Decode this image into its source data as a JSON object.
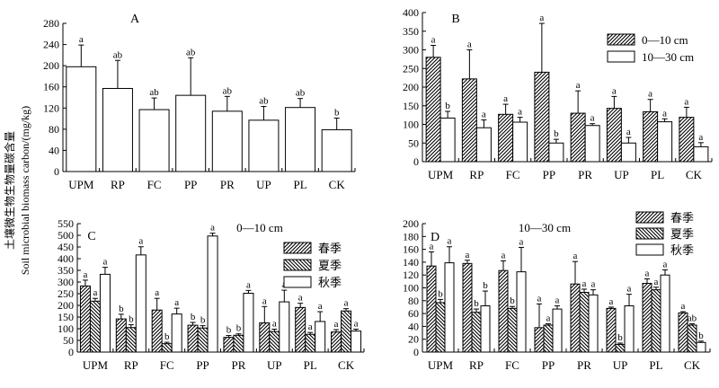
{
  "figure": {
    "ylabel_cn": "土壤微生物生物量碳含量",
    "ylabel_en": "Soil microbial biomass carbon/(mg/kg)"
  },
  "colors": {
    "bar_outline": "#000000",
    "bar_fill": "#ffffff",
    "hatch": "#000000"
  },
  "chart_data": [
    {
      "id": "A",
      "type": "bar",
      "title": "A",
      "subtitle": "",
      "categories": [
        "UPM",
        "RP",
        "FC",
        "PP",
        "PR",
        "UP",
        "PL",
        "CK"
      ],
      "ylim": [
        0,
        280
      ],
      "yticks": [
        0,
        40,
        80,
        120,
        160,
        200,
        240,
        280
      ],
      "grid": false,
      "legend": null,
      "series": [
        {
          "name": "",
          "pattern": "open",
          "values": [
            198,
            157,
            117,
            144,
            114,
            97,
            121,
            79
          ],
          "errors": [
            41,
            53,
            22,
            71,
            28,
            26,
            17,
            22
          ],
          "letters": [
            "a",
            "ab",
            "ab",
            "ab",
            "ab",
            "ab",
            "ab",
            "b"
          ]
        }
      ]
    },
    {
      "id": "B",
      "type": "bar",
      "title": "B",
      "subtitle": "",
      "categories": [
        "UPM",
        "RP",
        "FC",
        "PP",
        "PR",
        "UP",
        "PL",
        "CK"
      ],
      "ylim": [
        0,
        400
      ],
      "yticks": [
        0,
        50,
        100,
        150,
        200,
        250,
        300,
        350,
        400
      ],
      "grid": false,
      "legend": "top-right",
      "series": [
        {
          "name": "0—10 cm",
          "pattern": "hatch-right",
          "values": [
            280,
            222,
            127,
            240,
            130,
            143,
            134,
            119
          ],
          "errors": [
            32,
            78,
            27,
            131,
            60,
            32,
            33,
            27
          ],
          "letters": [
            "a",
            "a",
            "a",
            "a",
            "a",
            "a",
            "a",
            "a"
          ]
        },
        {
          "name": "10—30 cm",
          "pattern": "open",
          "values": [
            117,
            91,
            106,
            50,
            97,
            50,
            107,
            40
          ],
          "errors": [
            18,
            21,
            13,
            10,
            5,
            15,
            8,
            11
          ],
          "letters": [
            "b",
            "a",
            "a",
            "b",
            "a",
            "a",
            "a",
            "a"
          ]
        }
      ]
    },
    {
      "id": "C",
      "type": "bar",
      "title": "C",
      "subtitle": "0—10 cm",
      "categories": [
        "UPM",
        "RP",
        "FC",
        "PP",
        "PR",
        "UP",
        "PL",
        "CK"
      ],
      "ylim": [
        0,
        550
      ],
      "yticks": [
        0,
        50,
        100,
        150,
        200,
        250,
        300,
        350,
        400,
        450,
        500,
        550
      ],
      "grid": false,
      "legend": "right",
      "series": [
        {
          "name": "春季",
          "pattern": "hatch-right",
          "values": [
            283,
            142,
            180,
            115,
            63,
            125,
            191,
            86
          ],
          "errors": [
            25,
            20,
            50,
            12,
            8,
            70,
            18,
            10
          ],
          "letters": [
            "a",
            "b",
            "a",
            "b",
            "b",
            "a",
            "a",
            "a"
          ]
        },
        {
          "name": "夏季",
          "pattern": "hatch-left",
          "values": [
            218,
            105,
            36,
            103,
            72,
            88,
            76,
            176
          ],
          "errors": [
            12,
            12,
            6,
            10,
            6,
            10,
            8,
            10
          ],
          "letters": [
            "a",
            "b",
            "b",
            "b",
            "b",
            "a",
            "a",
            "a"
          ]
        },
        {
          "name": "秋季",
          "pattern": "open",
          "values": [
            333,
            416,
            163,
            497,
            252,
            215,
            131,
            90
          ],
          "errors": [
            30,
            35,
            25,
            12,
            12,
            50,
            42,
            8
          ],
          "letters": [
            "a",
            "a",
            "a",
            "a",
            "a",
            "a",
            "a",
            "a"
          ]
        }
      ]
    },
    {
      "id": "D",
      "type": "bar",
      "title": "D",
      "subtitle": "10—30 cm",
      "categories": [
        "UPM",
        "RP",
        "FC",
        "PP",
        "PR",
        "UP",
        "PL",
        "CK"
      ],
      "ylim": [
        0,
        200
      ],
      "yticks": [
        0,
        20,
        40,
        60,
        80,
        100,
        120,
        140,
        160,
        180,
        200
      ],
      "grid": false,
      "legend": "top-right",
      "series": [
        {
          "name": "春季",
          "pattern": "hatch-right",
          "values": [
            134,
            138,
            127,
            38,
            106,
            68,
            107,
            61
          ],
          "errors": [
            22,
            5,
            15,
            37,
            35,
            2,
            7,
            2
          ],
          "letters": [
            "a",
            "a",
            "a",
            "a",
            "a",
            "a",
            "a",
            "a"
          ]
        },
        {
          "name": "夏季",
          "pattern": "hatch-left",
          "values": [
            77,
            62,
            68,
            42,
            93,
            12,
            97,
            42
          ],
          "errors": [
            5,
            5,
            3,
            2,
            5,
            2,
            4,
            2
          ],
          "letters": [
            "b",
            "b",
            "b",
            "a",
            "a",
            "b",
            "a",
            "ab"
          ]
        },
        {
          "name": "秋季",
          "pattern": "open",
          "values": [
            139,
            72,
            125,
            67,
            89,
            72,
            120,
            15
          ],
          "errors": [
            25,
            23,
            38,
            5,
            8,
            18,
            8,
            2
          ],
          "letters": [
            "a",
            "b",
            "a",
            "a",
            "a",
            "a",
            "a",
            "b"
          ]
        }
      ]
    }
  ]
}
